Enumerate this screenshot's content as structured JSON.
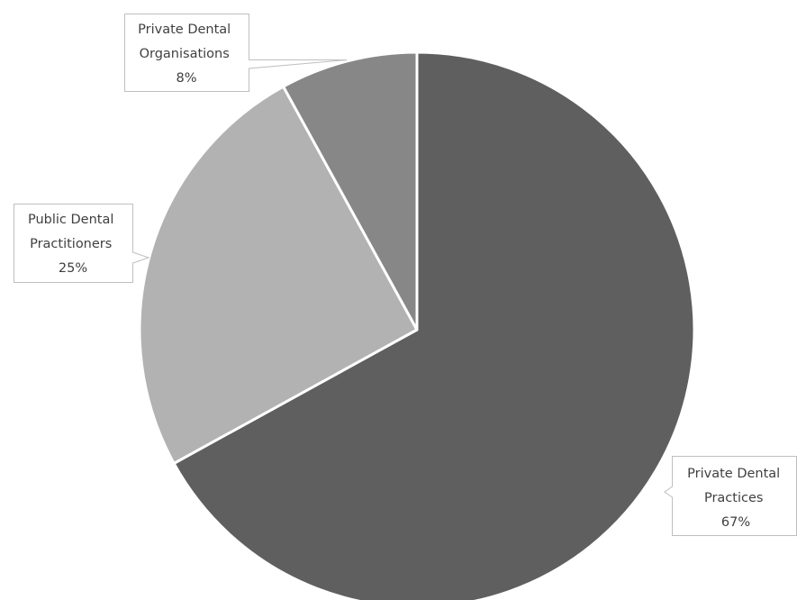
{
  "chart_data": {
    "type": "pie",
    "title": "",
    "start_angle_deg": 0,
    "direction": "clockwise",
    "slices": [
      {
        "label_lines": [
          "Private Dental",
          "Practices"
        ],
        "pct_label": "67%",
        "value": 67,
        "color": "#5f5f5f"
      },
      {
        "label_lines": [
          "Public Dental",
          "Practitioners"
        ],
        "pct_label": "25%",
        "value": 25,
        "color": "#b2b2b2"
      },
      {
        "label_lines": [
          "Private Dental",
          "Organisations"
        ],
        "pct_label": "8%",
        "value": 8,
        "color": "#878787"
      }
    ],
    "legend": false,
    "data_labels": "callout"
  }
}
